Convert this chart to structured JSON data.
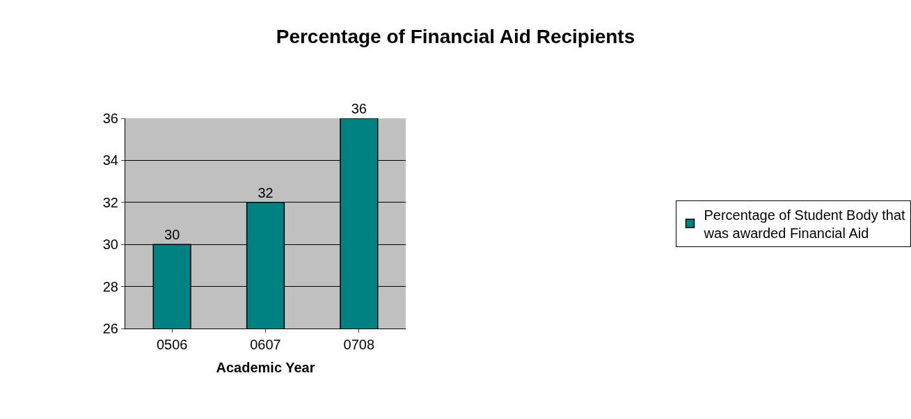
{
  "chart_data": {
    "type": "bar",
    "title": "Percentage of Financial Aid Recipients",
    "xlabel": "Academic Year",
    "categories": [
      "0506",
      "0607",
      "0708"
    ],
    "series": [
      {
        "name": "Percentage of Student Body that was awarded Financial Aid",
        "color": "#008080",
        "values": [
          30,
          32,
          36
        ]
      }
    ],
    "ylim": [
      26,
      36
    ],
    "yticks": [
      26,
      28,
      30,
      32,
      34,
      36
    ],
    "grid": "y",
    "legend": "right",
    "data_labels": true
  }
}
